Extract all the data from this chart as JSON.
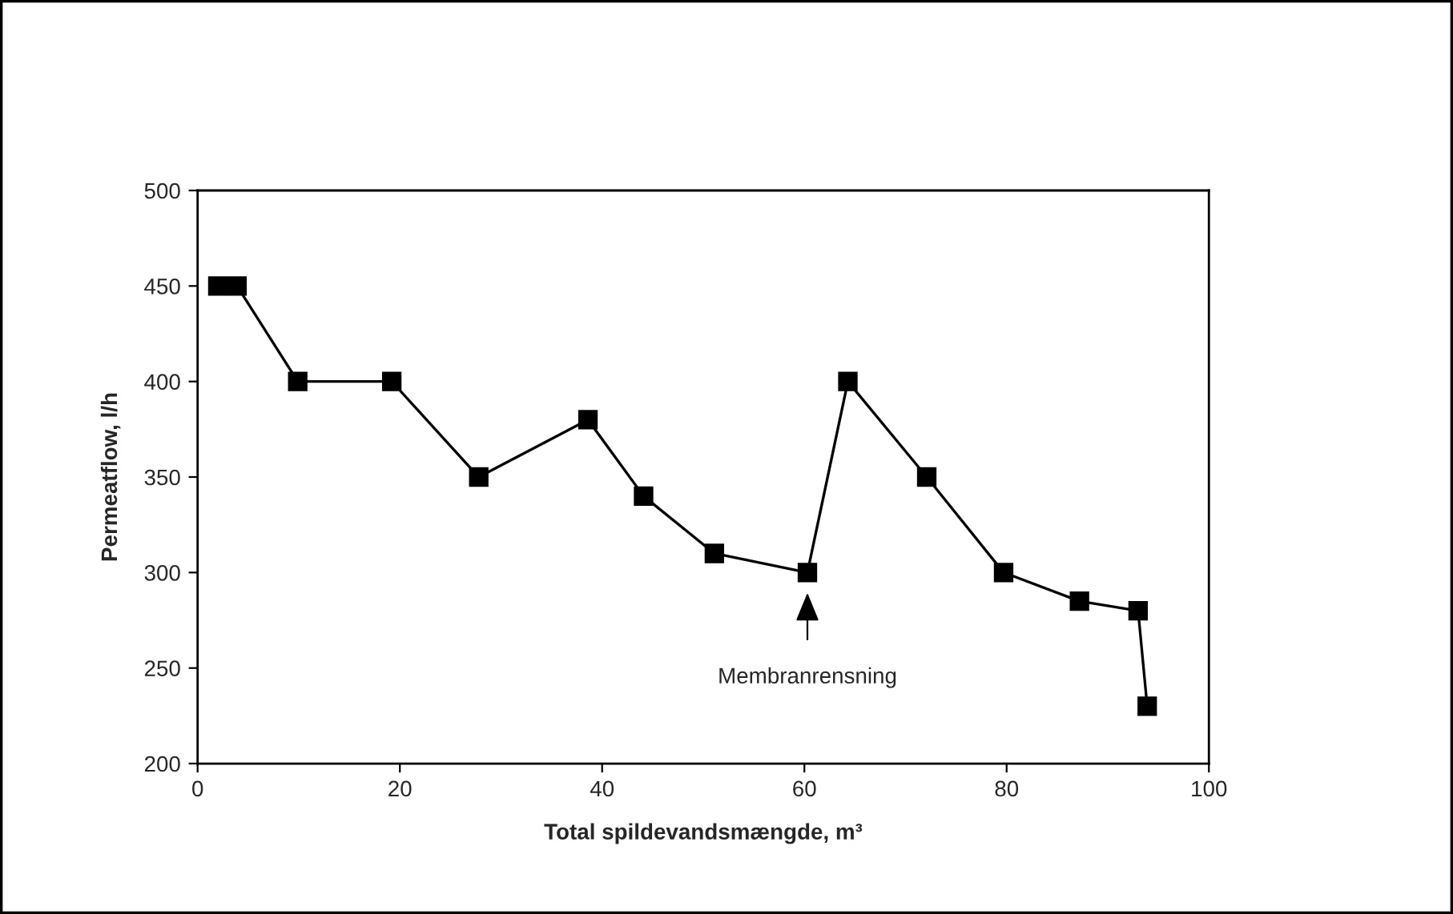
{
  "chart_data": {
    "type": "line",
    "xlabel": "Total spildevandsmængde, m³",
    "ylabel": "Permeatflow, l/h",
    "x": [
      2.0,
      3.9,
      9.9,
      19.2,
      27.8,
      38.6,
      44.1,
      51.1,
      60.3,
      64.3,
      72.1,
      79.7,
      87.2,
      93.0,
      93.9
    ],
    "series": [
      {
        "color": "#000000",
        "values": [
          450,
          450,
          400,
          400,
          350,
          380,
          340,
          310,
          300,
          400,
          350,
          300,
          285,
          280,
          230
        ]
      }
    ],
    "marker": "square",
    "line_style": "solid",
    "grid": false,
    "legend": false,
    "xlim": [
      0,
      100
    ],
    "xticks": [
      0,
      20,
      40,
      60,
      80,
      100
    ],
    "ylim": [
      200,
      500
    ],
    "yticks": [
      200,
      250,
      300,
      350,
      400,
      450,
      500
    ],
    "annotations": [
      "Membranrensning"
    ]
  }
}
